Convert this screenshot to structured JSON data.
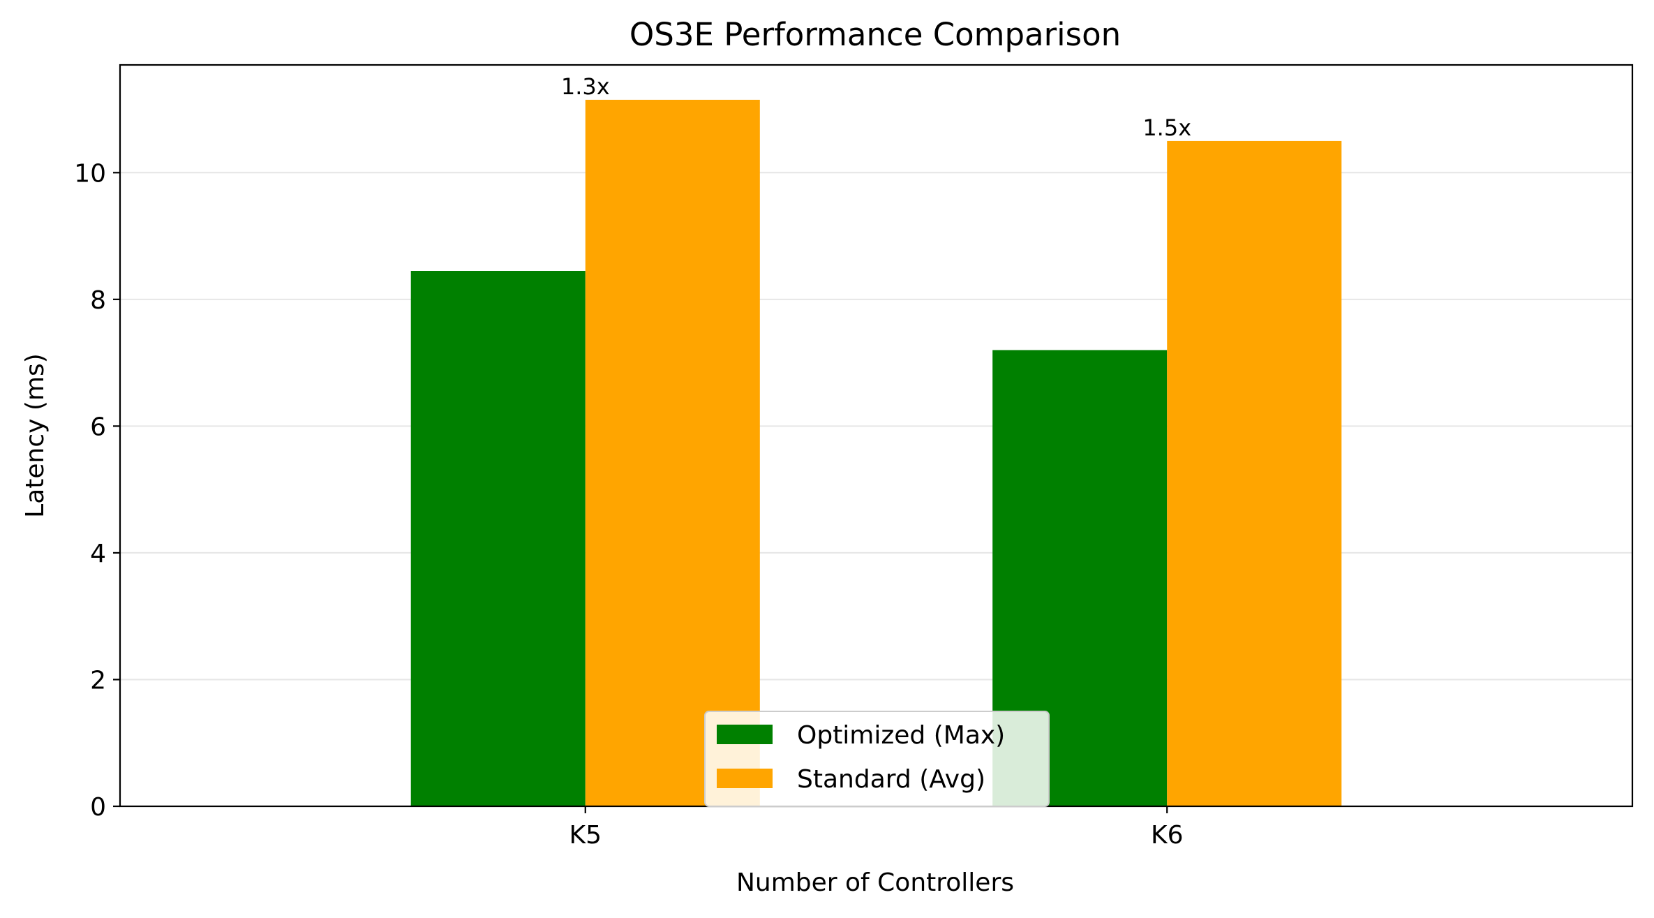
{
  "chart_data": {
    "type": "bar",
    "title": "OS3E Performance Comparison",
    "xlabel": "Number of Controllers",
    "ylabel": "Latency (ms)",
    "categories": [
      "K5",
      "K6"
    ],
    "series": [
      {
        "name": "Optimized (Max)",
        "values": [
          8.45,
          7.2
        ],
        "color": "#008000"
      },
      {
        "name": "Standard (Avg)",
        "values": [
          11.15,
          10.5
        ],
        "color": "#FFA500"
      }
    ],
    "annotations": [
      "1.3x",
      "1.5x"
    ],
    "ylim": [
      0,
      11.7
    ],
    "yticks": [
      0,
      2,
      4,
      6,
      8,
      10
    ],
    "grid": "y",
    "legend_position": "lower-center"
  }
}
